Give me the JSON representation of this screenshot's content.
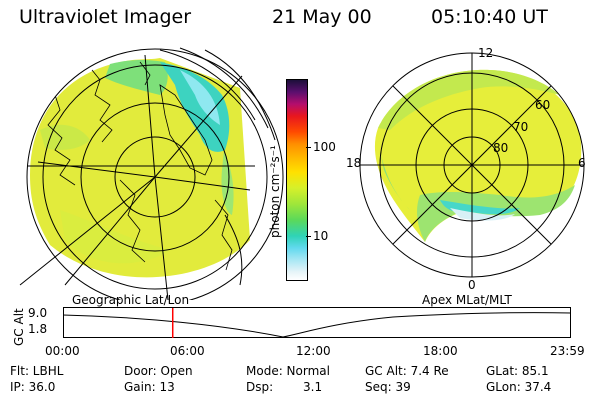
{
  "header": {
    "title": "Ultraviolet Imager",
    "date": "21 May 00",
    "time": "05:10:40 UT"
  },
  "colorbar": {
    "label": "photon cm⁻²s⁻¹",
    "ticks": [
      "100",
      "10"
    ]
  },
  "polar": {
    "mlt_labels": {
      "top": "12",
      "left": "18",
      "right": "6",
      "bottom": "0"
    },
    "lat_labels": [
      "60",
      "70",
      "80"
    ]
  },
  "timeline": {
    "left_label": "Geographic Lat/Lon",
    "right_label": "Apex MLat/MLT",
    "axis_label": "GC Alt",
    "y_values": [
      "9.0",
      "1.8"
    ],
    "time_ticks": [
      "00:00",
      "06:00",
      "12:00",
      "18:00",
      "23:59"
    ],
    "current_time_fraction": 0.216
  },
  "footer": {
    "flt": "Flt: LBHL",
    "ip": "IP: 36.0",
    "door": "Door: Open",
    "gain": "Gain: 13",
    "mode": "Mode: Normal",
    "dsp_label": "Dsp:",
    "dsp_value": "3.1",
    "gc_alt": "GC Alt: 7.4 Re",
    "seq": "Seq: 39",
    "glat": "GLat: 85.1",
    "glon": "GLon: 37.4"
  },
  "colors": {
    "background": "#ffffff",
    "marker": "#ff0000",
    "aurora_main": "#e6ee3a",
    "aurora_low": "#3fd6c8"
  }
}
